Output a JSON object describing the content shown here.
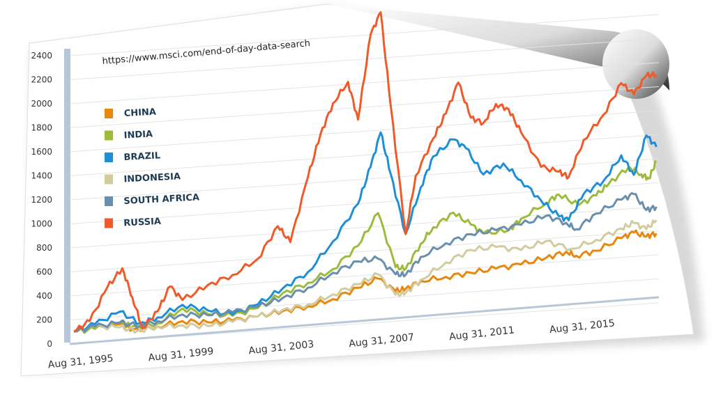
{
  "source_url": "https://www.msci.com/end-of-day-data-search",
  "chart_data": {
    "type": "line",
    "title": "",
    "xlabel": "",
    "ylabel": "",
    "ylim": [
      0,
      2400
    ],
    "yticks": [
      0,
      200,
      400,
      600,
      800,
      1000,
      1200,
      1400,
      1600,
      1800,
      2000,
      2200,
      2400
    ],
    "xlim": [
      1995.5,
      2019.0
    ],
    "xticks": [
      {
        "label": "Aug 31, 1995",
        "x": 1995.67
      },
      {
        "label": "Aug 31, 1999",
        "x": 1999.67
      },
      {
        "label": "Aug 31, 2003",
        "x": 2003.67
      },
      {
        "label": "Aug 31, 2007",
        "x": 2007.67
      },
      {
        "label": "Aug 31, 2011",
        "x": 2011.67
      },
      {
        "label": "Aug 31, 2015",
        "x": 2015.67
      }
    ],
    "grid": true,
    "legend_position": "top-left",
    "series": [
      {
        "name": "CHINA",
        "color": "#e8870e",
        "points": [
          [
            1995.67,
            100
          ],
          [
            1996.5,
            115
          ],
          [
            1997.5,
            135
          ],
          [
            1998.0,
            85
          ],
          [
            1999.0,
            95
          ],
          [
            2000.0,
            125
          ],
          [
            2001.0,
            100
          ],
          [
            2002.0,
            100
          ],
          [
            2003.0,
            120
          ],
          [
            2004.0,
            150
          ],
          [
            2005.0,
            175
          ],
          [
            2006.0,
            220
          ],
          [
            2007.0,
            300
          ],
          [
            2007.8,
            365
          ],
          [
            2008.5,
            250
          ],
          [
            2008.9,
            265
          ],
          [
            2009.5,
            320
          ],
          [
            2010.5,
            340
          ],
          [
            2011.5,
            360
          ],
          [
            2012.5,
            380
          ],
          [
            2013.5,
            400
          ],
          [
            2014.5,
            440
          ],
          [
            2015.3,
            480
          ],
          [
            2015.7,
            440
          ],
          [
            2016.5,
            470
          ],
          [
            2017.5,
            560
          ],
          [
            2018.0,
            600
          ],
          [
            2018.5,
            560
          ],
          [
            2018.9,
            580
          ]
        ]
      },
      {
        "name": "INDIA",
        "color": "#9cbb3b",
        "points": [
          [
            1995.67,
            100
          ],
          [
            1996.5,
            110
          ],
          [
            1997.5,
            150
          ],
          [
            1998.0,
            110
          ],
          [
            1999.0,
            120
          ],
          [
            2000.0,
            230
          ],
          [
            2001.0,
            170
          ],
          [
            2002.0,
            140
          ],
          [
            2003.0,
            190
          ],
          [
            2004.0,
            300
          ],
          [
            2005.0,
            370
          ],
          [
            2006.0,
            470
          ],
          [
            2007.0,
            650
          ],
          [
            2007.8,
            910
          ],
          [
            2008.5,
            450
          ],
          [
            2008.9,
            430
          ],
          [
            2009.5,
            630
          ],
          [
            2010.0,
            760
          ],
          [
            2010.8,
            870
          ],
          [
            2011.5,
            760
          ],
          [
            2012.0,
            680
          ],
          [
            2013.0,
            690
          ],
          [
            2013.5,
            780
          ],
          [
            2014.5,
            900
          ],
          [
            2015.0,
            960
          ],
          [
            2015.8,
            860
          ],
          [
            2016.5,
            930
          ],
          [
            2017.0,
            1020
          ],
          [
            2017.8,
            1150
          ],
          [
            2018.3,
            1080
          ],
          [
            2018.6,
            1040
          ],
          [
            2018.9,
            1180
          ]
        ]
      },
      {
        "name": "BRAZIL",
        "color": "#1f8ed8",
        "points": [
          [
            1995.67,
            100
          ],
          [
            1996.5,
            150
          ],
          [
            1997.5,
            240
          ],
          [
            1998.3,
            130
          ],
          [
            1999.0,
            170
          ],
          [
            2000.0,
            260
          ],
          [
            2001.0,
            200
          ],
          [
            2002.0,
            150
          ],
          [
            2003.0,
            220
          ],
          [
            2004.0,
            340
          ],
          [
            2005.0,
            460
          ],
          [
            2006.0,
            700
          ],
          [
            2007.0,
            1000
          ],
          [
            2007.5,
            1300
          ],
          [
            2007.9,
            1580
          ],
          [
            2008.3,
            1230
          ],
          [
            2008.9,
            720
          ],
          [
            2009.5,
            1100
          ],
          [
            2010.0,
            1350
          ],
          [
            2010.8,
            1480
          ],
          [
            2011.3,
            1400
          ],
          [
            2012.0,
            1170
          ],
          [
            2012.8,
            1250
          ],
          [
            2013.5,
            1100
          ],
          [
            2014.3,
            920
          ],
          [
            2015.0,
            780
          ],
          [
            2015.4,
            740
          ],
          [
            2016.0,
            950
          ],
          [
            2016.8,
            1050
          ],
          [
            2017.5,
            1250
          ],
          [
            2018.0,
            1080
          ],
          [
            2018.5,
            1400
          ],
          [
            2018.9,
            1300
          ]
        ]
      },
      {
        "name": "INDONESIA",
        "color": "#d1cb9e",
        "points": [
          [
            1995.67,
            100
          ],
          [
            1996.5,
            130
          ],
          [
            1997.5,
            110
          ],
          [
            1998.2,
            70
          ],
          [
            1999.0,
            95
          ],
          [
            2000.0,
            90
          ],
          [
            2001.0,
            70
          ],
          [
            2002.0,
            90
          ],
          [
            2003.0,
            120
          ],
          [
            2004.0,
            160
          ],
          [
            2005.0,
            190
          ],
          [
            2006.0,
            260
          ],
          [
            2007.0,
            330
          ],
          [
            2007.8,
            400
          ],
          [
            2008.5,
            220
          ],
          [
            2008.9,
            230
          ],
          [
            2009.5,
            330
          ],
          [
            2010.5,
            460
          ],
          [
            2011.5,
            550
          ],
          [
            2012.5,
            560
          ],
          [
            2013.5,
            520
          ],
          [
            2014.5,
            580
          ],
          [
            2015.5,
            500
          ],
          [
            2016.5,
            560
          ],
          [
            2017.5,
            640
          ],
          [
            2018.0,
            680
          ],
          [
            2018.5,
            620
          ],
          [
            2018.9,
            690
          ]
        ]
      },
      {
        "name": "SOUTH AFRICA",
        "color": "#6a8fad",
        "points": [
          [
            1995.67,
            100
          ],
          [
            1996.5,
            130
          ],
          [
            1997.5,
            150
          ],
          [
            1998.3,
            110
          ],
          [
            1999.0,
            140
          ],
          [
            2000.0,
            180
          ],
          [
            2001.0,
            160
          ],
          [
            2002.0,
            170
          ],
          [
            2003.0,
            200
          ],
          [
            2004.0,
            260
          ],
          [
            2005.0,
            330
          ],
          [
            2006.0,
            440
          ],
          [
            2007.0,
            520
          ],
          [
            2007.8,
            530
          ],
          [
            2008.5,
            390
          ],
          [
            2008.9,
            380
          ],
          [
            2009.5,
            520
          ],
          [
            2010.5,
            620
          ],
          [
            2011.5,
            680
          ],
          [
            2012.5,
            700
          ],
          [
            2013.5,
            730
          ],
          [
            2014.5,
            790
          ],
          [
            2015.3,
            720
          ],
          [
            2015.7,
            660
          ],
          [
            2016.5,
            780
          ],
          [
            2017.5,
            880
          ],
          [
            2018.0,
            920
          ],
          [
            2018.5,
            780
          ],
          [
            2018.9,
            800
          ]
        ]
      },
      {
        "name": "RUSSIA",
        "color": "#f05a28",
        "points": [
          [
            1995.67,
            100
          ],
          [
            1996.3,
            180
          ],
          [
            1997.0,
            450
          ],
          [
            1997.6,
            600
          ],
          [
            1998.0,
            350
          ],
          [
            1998.4,
            90
          ],
          [
            1999.0,
            220
          ],
          [
            1999.5,
            420
          ],
          [
            2000.0,
            300
          ],
          [
            2001.0,
            410
          ],
          [
            2002.0,
            480
          ],
          [
            2003.0,
            600
          ],
          [
            2003.8,
            860
          ],
          [
            2004.3,
            720
          ],
          [
            2005.0,
            1250
          ],
          [
            2005.5,
            1600
          ],
          [
            2006.0,
            1850
          ],
          [
            2006.6,
            2020
          ],
          [
            2007.0,
            1700
          ],
          [
            2007.5,
            2400
          ],
          [
            2007.9,
            2580
          ],
          [
            2008.3,
            1800
          ],
          [
            2008.9,
            720
          ],
          [
            2009.3,
            1200
          ],
          [
            2010.0,
            1500
          ],
          [
            2010.5,
            1700
          ],
          [
            2011.0,
            1950
          ],
          [
            2011.5,
            1650
          ],
          [
            2012.0,
            1600
          ],
          [
            2012.5,
            1750
          ],
          [
            2013.0,
            1700
          ],
          [
            2013.5,
            1500
          ],
          [
            2014.3,
            1200
          ],
          [
            2015.0,
            1150
          ],
          [
            2015.4,
            1100
          ],
          [
            2016.0,
            1400
          ],
          [
            2016.8,
            1600
          ],
          [
            2017.5,
            1850
          ],
          [
            2018.0,
            1750
          ],
          [
            2018.5,
            1900
          ],
          [
            2018.9,
            1900
          ]
        ]
      }
    ]
  }
}
